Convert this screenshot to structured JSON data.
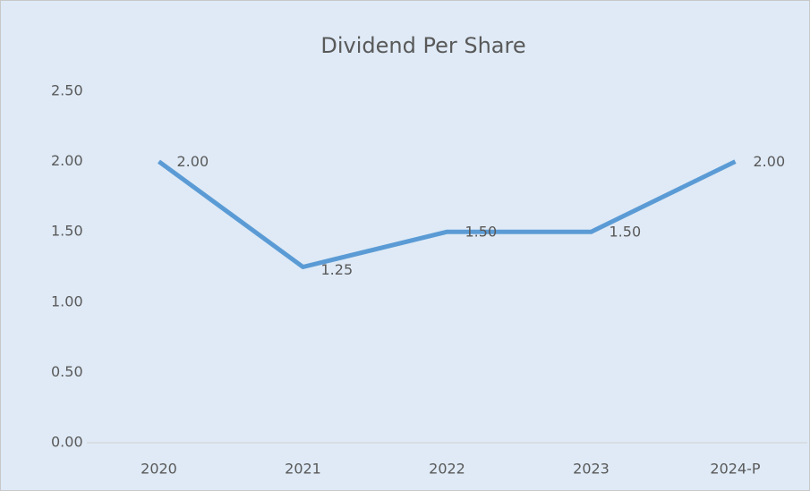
{
  "chart_data": {
    "type": "line",
    "title": "Dividend Per Share",
    "categories": [
      "2020",
      "2021",
      "2022",
      "2023",
      "2024-P"
    ],
    "series": [
      {
        "name": "Dividend Per Share",
        "color": "#5b9bd5",
        "values": [
          2.0,
          1.25,
          1.5,
          1.5,
          2.0
        ],
        "value_labels": [
          "2.00",
          "1.25",
          "1.50",
          "1.50",
          "2.00"
        ]
      }
    ],
    "ylim": [
      0,
      2.5
    ],
    "yticks": [
      {
        "value": 0,
        "label": "0.00"
      },
      {
        "value": 0.5,
        "label": "0.50"
      },
      {
        "value": 1,
        "label": "1.00"
      },
      {
        "value": 1.5,
        "label": "1.50"
      },
      {
        "value": 2,
        "label": "2.00"
      },
      {
        "value": 2.5,
        "label": "2.50"
      }
    ],
    "grid": false
  }
}
